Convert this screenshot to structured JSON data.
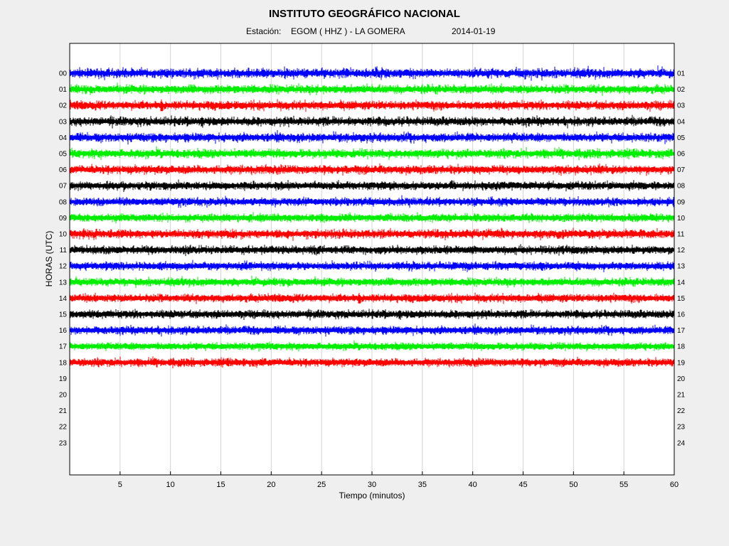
{
  "header": {
    "title": "INSTITUTO GEOGRÁFICO NACIONAL",
    "station_prefix": "Estación:",
    "station": "EGOM ( HHZ ) - LA GOMERA",
    "date": "2014-01-19"
  },
  "chart_data": {
    "type": "line",
    "title": "INSTITUTO GEOGRÁFICO NACIONAL",
    "subtitle": "Estación:  EGOM ( HHZ ) - LA GOMERA    2014-01-19",
    "xlabel": "Tiempo (minutos)",
    "ylabel": "HORAS (UTC)",
    "xlim": [
      0,
      60
    ],
    "x_ticks": [
      5,
      10,
      15,
      20,
      25,
      30,
      35,
      40,
      45,
      50,
      55,
      60
    ],
    "left_hour_labels": [
      "00",
      "01",
      "02",
      "03",
      "04",
      "05",
      "06",
      "07",
      "08",
      "09",
      "10",
      "11",
      "12",
      "13",
      "14",
      "15",
      "16",
      "17",
      "18",
      "19",
      "20",
      "21",
      "22",
      "23"
    ],
    "right_hour_labels": [
      "01",
      "02",
      "03",
      "04",
      "05",
      "06",
      "07",
      "08",
      "09",
      "10",
      "11",
      "12",
      "13",
      "14",
      "15",
      "16",
      "17",
      "18",
      "19",
      "20",
      "21",
      "22",
      "23",
      "24"
    ],
    "grid_x": true,
    "trace_colors": [
      "#0000ff",
      "#00ee00",
      "#ff0000",
      "#000000"
    ],
    "series": [
      {
        "hour": "00",
        "color": "#0000ff",
        "amplitude": 9
      },
      {
        "hour": "01",
        "color": "#00ee00",
        "amplitude": 8
      },
      {
        "hour": "02",
        "color": "#ff0000",
        "amplitude": 8
      },
      {
        "hour": "03",
        "color": "#000000",
        "amplitude": 8
      },
      {
        "hour": "04",
        "color": "#0000ff",
        "amplitude": 8
      },
      {
        "hour": "05",
        "color": "#00ee00",
        "amplitude": 8
      },
      {
        "hour": "06",
        "color": "#ff0000",
        "amplitude": 8
      },
      {
        "hour": "07",
        "color": "#000000",
        "amplitude": 7
      },
      {
        "hour": "08",
        "color": "#0000ff",
        "amplitude": 7
      },
      {
        "hour": "09",
        "color": "#00ee00",
        "amplitude": 7
      },
      {
        "hour": "10",
        "color": "#ff0000",
        "amplitude": 8
      },
      {
        "hour": "11",
        "color": "#000000",
        "amplitude": 7
      },
      {
        "hour": "12",
        "color": "#0000ff",
        "amplitude": 7
      },
      {
        "hour": "13",
        "color": "#00ee00",
        "amplitude": 7
      },
      {
        "hour": "14",
        "color": "#ff0000",
        "amplitude": 7
      },
      {
        "hour": "15",
        "color": "#000000",
        "amplitude": 7
      },
      {
        "hour": "16",
        "color": "#0000ff",
        "amplitude": 7
      },
      {
        "hour": "17",
        "color": "#00ee00",
        "amplitude": 6
      },
      {
        "hour": "18",
        "color": "#ff0000",
        "amplitude": 7
      }
    ]
  }
}
